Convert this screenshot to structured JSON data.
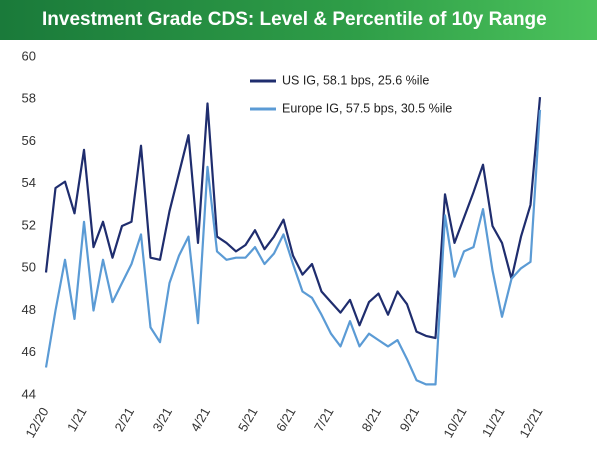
{
  "chart_data": {
    "type": "line",
    "title": "Investment Grade CDS: Level & Percentile of 10y Range",
    "categories": [
      "12/20",
      null,
      null,
      null,
      "1/21",
      null,
      null,
      null,
      null,
      "2/21",
      null,
      null,
      null,
      "3/21",
      null,
      null,
      null,
      "4/21",
      null,
      null,
      null,
      null,
      "5/21",
      null,
      null,
      null,
      "6/21",
      null,
      null,
      null,
      "7/21",
      null,
      null,
      null,
      null,
      "8/21",
      null,
      null,
      null,
      "9/21",
      null,
      null,
      null,
      null,
      "10/21",
      null,
      null,
      null,
      "11/21",
      null,
      null,
      null,
      "12/21"
    ],
    "series": [
      {
        "name": "US IG, 58.1 bps, 25.6 %ile",
        "color": "#1f2d6e",
        "values": [
          49.8,
          53.8,
          54.1,
          52.6,
          55.6,
          51.0,
          52.2,
          50.5,
          52.0,
          52.2,
          55.8,
          50.5,
          50.4,
          52.7,
          54.5,
          56.3,
          51.2,
          57.8,
          51.5,
          51.2,
          50.8,
          51.1,
          51.8,
          50.9,
          51.5,
          52.3,
          50.6,
          49.7,
          50.2,
          48.9,
          48.4,
          47.9,
          48.5,
          47.3,
          48.4,
          48.8,
          47.8,
          48.9,
          48.3,
          47.0,
          46.8,
          46.7,
          53.5,
          51.2,
          52.4,
          53.6,
          54.9,
          52.0,
          51.2,
          49.5,
          51.5,
          53.0,
          58.1
        ]
      },
      {
        "name": "Europe IG, 57.5 bps, 30.5 %ile",
        "color": "#5b9bd5",
        "values": [
          45.3,
          48.0,
          50.4,
          47.6,
          52.2,
          48.0,
          50.4,
          48.4,
          49.3,
          50.2,
          51.6,
          47.2,
          46.5,
          49.3,
          50.6,
          51.5,
          47.4,
          54.8,
          50.8,
          50.4,
          50.5,
          50.5,
          51.0,
          50.2,
          50.7,
          51.6,
          50.2,
          48.9,
          48.6,
          47.8,
          46.9,
          46.3,
          47.5,
          46.3,
          46.9,
          46.6,
          46.3,
          46.6,
          45.7,
          44.7,
          44.5,
          44.5,
          52.5,
          49.6,
          50.8,
          51.0,
          52.8,
          49.9,
          47.7,
          49.5,
          50.0,
          50.3,
          57.5
        ]
      }
    ],
    "ylim": [
      44,
      60
    ],
    "yticks": [
      44,
      46,
      48,
      50,
      52,
      54,
      56,
      58,
      60
    ],
    "legend": "upper center"
  }
}
